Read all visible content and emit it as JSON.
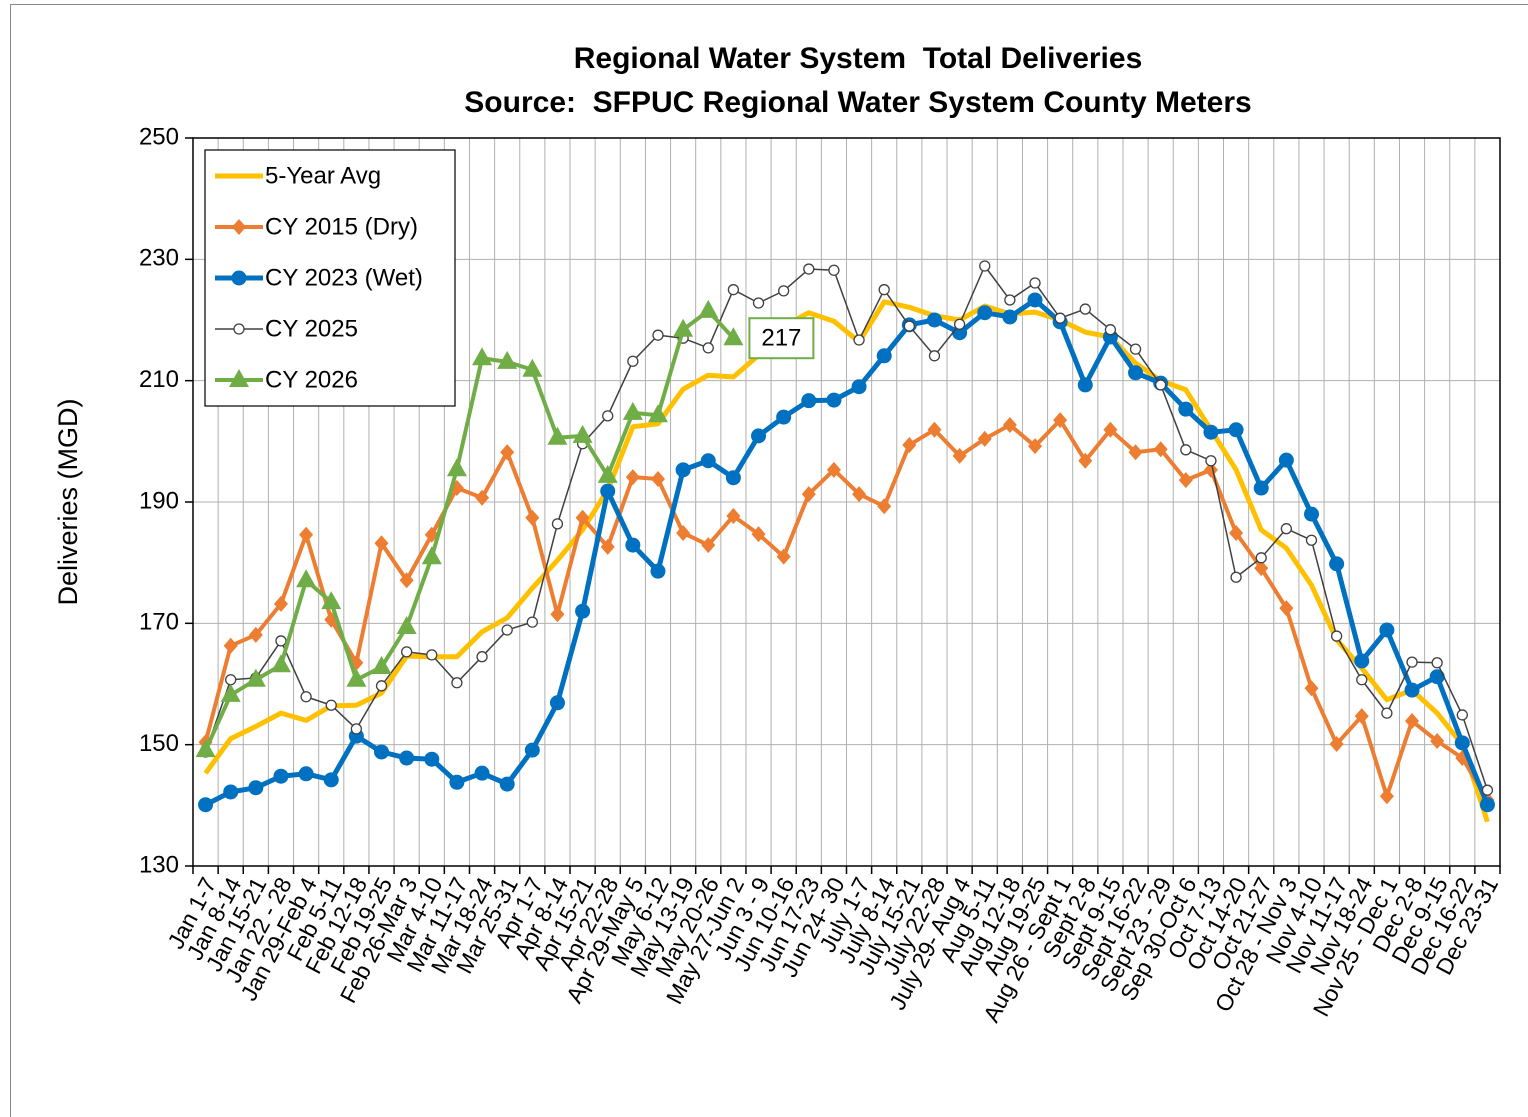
{
  "chart_data": {
    "type": "line",
    "title": [
      "Regional Water System  Total Deliveries",
      "Source:  SFPUC Regional Water System County Meters"
    ],
    "y_label": "Deliveries (MGD)",
    "categories": [
      "Jan 1-7",
      "Jan 8-14",
      "Jan 15-21",
      "Jan 22 - 28",
      "Jan 29-Feb 4",
      "Feb 5-11",
      "Feb 12-18",
      "Feb 19-25",
      "Feb 26-Mar 3",
      "Mar 4-10",
      "Mar 11-17",
      "Mar 18-24",
      "Mar 25-31",
      "Apr 1-7",
      "Apr 8-14",
      "Apr 15-21",
      "Apr 22-28",
      "Apr 29-May 5",
      "May 6-12",
      "May 13-19",
      "May 20-26",
      "May 27-Jun 2",
      "Jun 3 - 9",
      "Jun 10-16",
      "Jun 17-23",
      "Jun 24- 30",
      "July 1-7",
      "July 8-14",
      "July 15-21",
      "July 22-28",
      "July 29- Aug 4",
      "Aug 5-11",
      "Aug 12-18",
      "Aug 19-25",
      "Aug 26 - Sept 1",
      "Sept 2-8",
      "Sept 9-15",
      "Sept 16-22",
      "Sept 23 - 29",
      "Sep 30-Oct 6",
      "Oct 7-13",
      "Oct 14-20",
      "Oct 21-27",
      "Oct 28 - Nov 3",
      "Nov 4-10",
      "Nov 11-17",
      "Nov 18-24",
      "Nov 25 - Dec 1",
      "Dec 2-8",
      "Dec 9-15",
      "Dec 16-22",
      "Dec 23-31"
    ],
    "series": [
      {
        "name": "5-Year Avg",
        "color": "#ffc000",
        "marker": "none",
        "line_width": 5,
        "values": [
          145.3,
          151,
          153,
          155.2,
          154,
          156.4,
          156.5,
          158.5,
          164.6,
          164.5,
          164.5,
          168.6,
          170.9,
          175.8,
          180.4,
          185.4,
          192,
          202.4,
          202.9,
          208.6,
          210.9,
          210.6,
          214.2,
          219,
          221.2,
          219.8,
          216.4,
          223,
          222.1,
          220.7,
          220,
          222.3,
          221,
          221.3,
          220,
          218,
          217.2,
          212.9,
          210,
          208.5,
          201.9,
          195.3,
          185.4,
          182.4,
          176.3,
          167.3,
          162.6,
          157.4,
          159,
          155.2,
          150,
          137.3
        ]
      },
      {
        "name": "CY 2015 (Dry)",
        "color": "#ed7d31",
        "marker": "diamond",
        "line_width": 4,
        "values": [
          150.4,
          166.3,
          168.1,
          173.2,
          184.6,
          170.6,
          163.5,
          183.2,
          177.1,
          184.6,
          192.3,
          190.7,
          198.2,
          187.4,
          171.5,
          187.4,
          182.6,
          194.1,
          193.8,
          184.9,
          182.9,
          187.7,
          184.7,
          181,
          191.3,
          195.3,
          191.3,
          189.3,
          199.4,
          201.9,
          197.6,
          200.4,
          202.7,
          199.2,
          203.5,
          196.8,
          201.9,
          198.2,
          198.7,
          193.6,
          195.3,
          184.9,
          179.1,
          172.5,
          159.3,
          150.1,
          154.7,
          141.5,
          153.9,
          150.6,
          147.8,
          140.9
        ]
      },
      {
        "name": "CY 2023 (Wet)",
        "color": "#0070c0",
        "marker": "circle",
        "line_width": 5,
        "values": [
          140.1,
          142.2,
          142.9,
          144.8,
          145.2,
          144.2,
          151.4,
          148.8,
          147.8,
          147.6,
          143.8,
          145.3,
          143.5,
          149.1,
          156.9,
          172,
          191.8,
          182.9,
          178.6,
          195.3,
          196.8,
          194,
          200.9,
          204,
          206.7,
          206.8,
          209,
          214.1,
          219.2,
          220,
          217.9,
          221.2,
          220.5,
          223.3,
          219.7,
          209.3,
          217.2,
          211.3,
          209.6,
          205.3,
          201.5,
          201.9,
          192.3,
          196.9,
          188,
          179.8,
          163.8,
          168.9,
          159,
          161.2,
          150.3,
          140.1
        ]
      },
      {
        "name": "CY 2025",
        "color": "#404040",
        "marker": "open-circle",
        "line_width": 1.5,
        "values": [
          148.8,
          160.7,
          161,
          167.1,
          157.9,
          156.5,
          152.6,
          159.7,
          165.3,
          164.8,
          160.2,
          164.5,
          168.9,
          170.2,
          186.4,
          199.6,
          204.2,
          213.2,
          217.5,
          217,
          215.4,
          225,
          222.8,
          224.8,
          228.4,
          228.2,
          216.7,
          225,
          219,
          214.1,
          219.3,
          228.9,
          223.3,
          226.1,
          220.3,
          221.8,
          218.4,
          215.2,
          209.3,
          198.6,
          196.8,
          177.6,
          180.8,
          185.6,
          183.7,
          167.9,
          160.7,
          155.2,
          163.6,
          163.5,
          154.9,
          142.5
        ]
      },
      {
        "name": "CY 2026",
        "color": "#70ad47",
        "marker": "triangle",
        "line_width": 4,
        "values": [
          149.1,
          158.2,
          160.7,
          163.1,
          177.1,
          173.5,
          160.7,
          162.8,
          169.4,
          180.9,
          195.4,
          213.7,
          213.1,
          211.8,
          200.6,
          200.9,
          194.3,
          204.7,
          204.3,
          218.4,
          221.5,
          217,
          null,
          null,
          null,
          null,
          null,
          null,
          null,
          null,
          null,
          null,
          null,
          null,
          null,
          null,
          null,
          null,
          null,
          null,
          null,
          null,
          null,
          null,
          null,
          null,
          null,
          null,
          null,
          null,
          null,
          null
        ]
      }
    ],
    "ylim": [
      130,
      250
    ],
    "yticks": [
      130,
      150,
      170,
      190,
      210,
      230,
      250
    ],
    "grid": true,
    "legend": "top-left"
  }
}
